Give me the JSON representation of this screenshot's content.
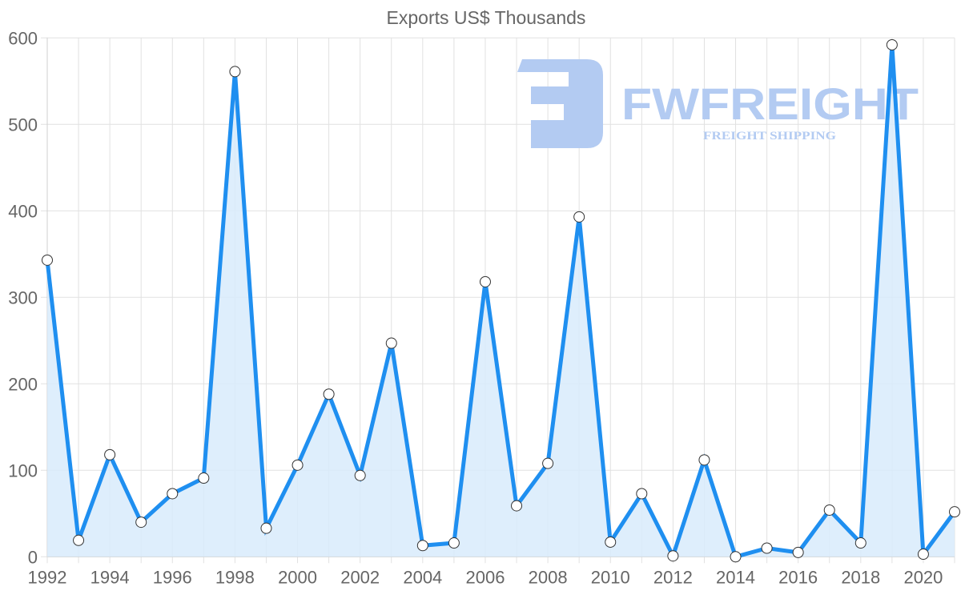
{
  "chart_data": {
    "type": "line",
    "title": "Exports US$ Thousands",
    "xlabel": "",
    "ylabel": "",
    "fill": true,
    "grid": true,
    "legend": null,
    "ylim": [
      0,
      600
    ],
    "yticks": [
      0,
      100,
      200,
      300,
      400,
      500,
      600
    ],
    "xtick_labels": [
      "1992",
      "1994",
      "1996",
      "1998",
      "2000",
      "2002",
      "2004",
      "2006",
      "2008",
      "2010",
      "2012",
      "2014",
      "2016",
      "2018",
      "2020"
    ],
    "x": [
      1992,
      1993,
      1994,
      1995,
      1996,
      1997,
      1998,
      1999,
      2000,
      2001,
      2002,
      2003,
      2004,
      2005,
      2006,
      2007,
      2008,
      2009,
      2010,
      2011,
      2012,
      2013,
      2014,
      2015,
      2016,
      2017,
      2018,
      2019,
      2020,
      2021
    ],
    "series": [
      {
        "name": "Exports US$ Thousands",
        "values": [
          343,
          19,
          118,
          40,
          73,
          91,
          561,
          33,
          106,
          188,
          94,
          247,
          13,
          16,
          318,
          59,
          108,
          393,
          17,
          73,
          1,
          112,
          0,
          10,
          5,
          54,
          16,
          592,
          3,
          52
        ]
      }
    ]
  },
  "colors": {
    "line": "#1f8ff0",
    "fill": "#d8ebfb",
    "point_fill": "#ffffff",
    "point_stroke": "#333333",
    "grid": "#e1e1e1",
    "text": "#666666",
    "watermark": "#b3cbf2"
  },
  "watermark": {
    "brand": "FWFREIGHT",
    "tagline": "FREIGHT SHIPPING"
  }
}
